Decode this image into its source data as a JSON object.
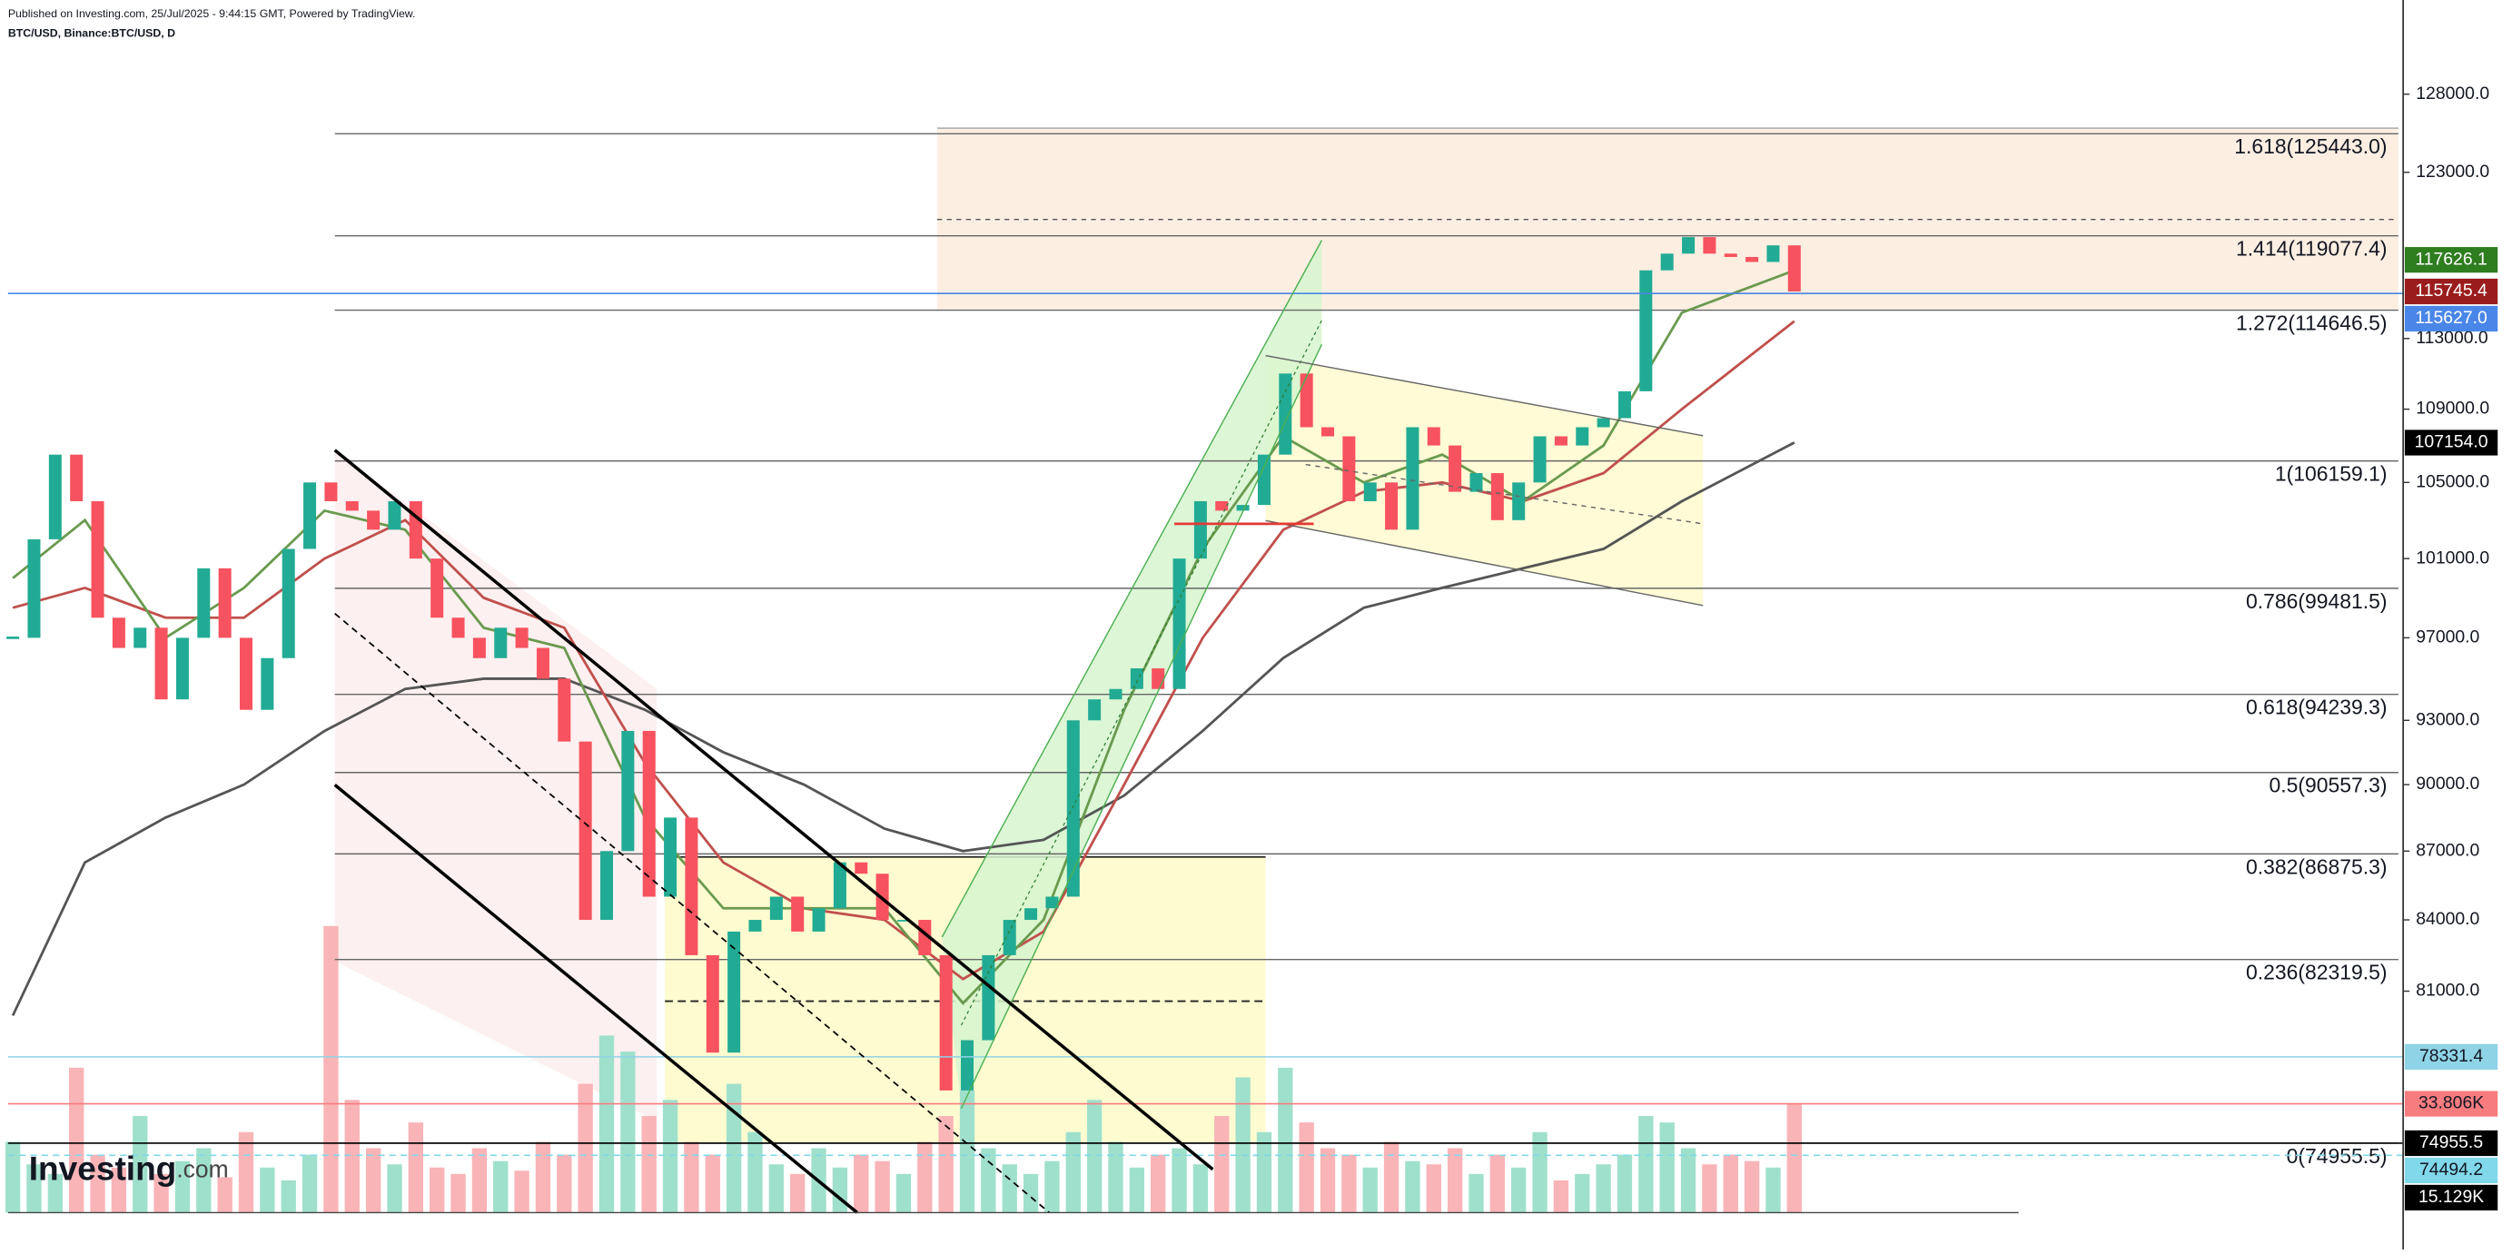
{
  "header": {
    "published": "Published on Investing.com, 25/Jul/2025 - 9:44:15 GMT, Powered by TradingView.",
    "symbol": "BTC/USD, Binance:BTC/USD, D"
  },
  "logo": {
    "name": "Investing",
    "suffix": ".com"
  },
  "chart_data": {
    "type": "candlestick",
    "log": true,
    "ylim": [
      71000,
      134300
    ],
    "yticks": [
      {
        "value": 128000,
        "label": "128000.0"
      },
      {
        "value": 123000,
        "label": "123000.0"
      },
      {
        "value": 113000,
        "label": "113000.0"
      },
      {
        "value": 109000,
        "label": "109000.0"
      },
      {
        "value": 105000,
        "label": "105000.0"
      },
      {
        "value": 101000,
        "label": "101000.0"
      },
      {
        "value": 97000,
        "label": "97000.0"
      },
      {
        "value": 93000,
        "label": "93000.0"
      },
      {
        "value": 90000,
        "label": "90000.0"
      },
      {
        "value": 87000,
        "label": "87000.0"
      },
      {
        "value": 84000,
        "label": "84000.0"
      },
      {
        "value": 81000,
        "label": "81000.0"
      }
    ],
    "candles": {
      "up_color": "#22ab94",
      "down_color": "#f7525f",
      "close": [
        97000,
        102000,
        106500,
        104000,
        98000,
        96500,
        97500,
        94000,
        97000,
        100500,
        97000,
        93500,
        96000,
        101500,
        105000,
        104000,
        103500,
        102500,
        104000,
        101000,
        98000,
        97000,
        96000,
        97500,
        96500,
        95000,
        92000,
        84000,
        87000,
        92500,
        85000,
        88500,
        82500,
        78500,
        83500,
        84000,
        85000,
        83500,
        84500,
        86500,
        86000,
        84000,
        84000,
        82500,
        77000,
        79000,
        82500,
        84000,
        84500,
        85000,
        93000,
        94000,
        94500,
        95500,
        94500,
        101000,
        104000,
        103500,
        103800,
        106500,
        111000,
        108000,
        107500,
        104000,
        105000,
        102500,
        108000,
        107000,
        104500,
        105500,
        103000,
        105000,
        107500,
        107000,
        108000,
        108500,
        110000,
        117000,
        118000,
        119000,
        118000,
        117800,
        117500,
        118500,
        115745.4
      ]
    },
    "volume": {
      "vlim": [
        0,
        100000
      ],
      "up_color": "#9fe0cc",
      "down_color": "#f9b4b7",
      "values": [
        22000,
        15000,
        12000,
        45000,
        18000,
        14000,
        30000,
        12000,
        16000,
        20000,
        11000,
        25000,
        14000,
        10000,
        18000,
        89000,
        35000,
        20000,
        15000,
        28000,
        14000,
        12000,
        20000,
        16000,
        13000,
        22000,
        18000,
        40000,
        55000,
        50000,
        30000,
        35000,
        22000,
        18000,
        40000,
        25000,
        15000,
        12000,
        20000,
        14000,
        18000,
        16000,
        12000,
        22000,
        30000,
        38000,
        20000,
        15000,
        12000,
        16000,
        25000,
        35000,
        22000,
        14000,
        18000,
        20000,
        15000,
        30000,
        42000,
        25000,
        45000,
        28000,
        20000,
        18000,
        14000,
        22000,
        16000,
        15000,
        20000,
        12000,
        18000,
        14000,
        25000,
        10000,
        12000,
        15000,
        18000,
        30000,
        28000,
        20000,
        15000,
        18000,
        16000,
        14000,
        33806
      ]
    },
    "moving_averages": [
      {
        "color": "#555555",
        "x": [
          0,
          3.4,
          7.2,
          10.9,
          14.7,
          18.5,
          22.2,
          26,
          29.8,
          33.5,
          37.3,
          41.1,
          44.8,
          48.6,
          52.4,
          56.1,
          59.9,
          63.7,
          67.4,
          71.2,
          75,
          78.7,
          84
        ],
        "values": [
          80000,
          86500,
          88500,
          90000,
          92500,
          94500,
          95000,
          95000,
          93500,
          91500,
          90000,
          88000,
          87000,
          87500,
          89500,
          92500,
          96000,
          98500,
          99500,
          100500,
          101500,
          104000,
          107154
        ]
      },
      {
        "color": "#c0504d",
        "x": [
          0,
          3.4,
          7.2,
          10.9,
          14.7,
          18.5,
          22.2,
          26,
          29.8,
          33.5,
          37.3,
          41.1,
          44.8,
          48.6,
          52.4,
          56.1,
          59.9,
          63.7,
          67.4,
          71.2,
          75,
          78.7,
          84
        ],
        "values": [
          98500,
          99500,
          98000,
          98000,
          101000,
          103000,
          99000,
          97500,
          91000,
          86500,
          84500,
          84000,
          81500,
          83500,
          90000,
          97000,
          102500,
          104500,
          105000,
          104000,
          105500,
          109000,
          114000
        ]
      },
      {
        "color": "#6a9a4f",
        "x": [
          0,
          3.4,
          7.2,
          10.9,
          14.7,
          18.5,
          22.2,
          26,
          29.8,
          33.5,
          37.3,
          41.1,
          44.8,
          48.6,
          52.4,
          56.1,
          59.9,
          63.7,
          67.4,
          71.2,
          75,
          78.7,
          84
        ],
        "values": [
          100000,
          103000,
          97000,
          99500,
          103500,
          102500,
          97500,
          96500,
          88500,
          84500,
          84500,
          84500,
          80500,
          84000,
          93500,
          101500,
          107500,
          105000,
          106500,
          104000,
          107000,
          114500,
          117000
        ]
      }
    ],
    "fib_levels": [
      {
        "value": 125443.0,
        "label": "1.618(125443.0)"
      },
      {
        "value": 119077.4,
        "label": "1.414(119077.4)"
      },
      {
        "value": 114646.5,
        "label": "1.272(114646.5)"
      },
      {
        "value": 106159.1,
        "label": "1(106159.1)"
      },
      {
        "value": 99481.5,
        "label": "0.786(99481.5)"
      },
      {
        "value": 94239.3,
        "label": "0.618(94239.3)"
      },
      {
        "value": 90557.3,
        "label": "0.5(90557.3)"
      },
      {
        "value": 86875.3,
        "label": "0.382(86875.3)"
      },
      {
        "value": 82319.5,
        "label": "0.236(82319.5)"
      },
      {
        "value": 74955.5,
        "label": "0(74955.5)"
      }
    ],
    "price_tags": [
      {
        "value": 117626.1,
        "label": "117626.1",
        "color": "#2e7d1f"
      },
      {
        "value": 115745.4,
        "label": "115745.4",
        "color": "#9b1c1c"
      },
      {
        "value": 115627.0,
        "label": "115627.0",
        "color": "#4a86e8",
        "line": "solid"
      },
      {
        "value": 107154.0,
        "label": "107154.0",
        "color": "#000000"
      },
      {
        "value": 78331.4,
        "label": "78331.4",
        "color": "#8fd3e6",
        "line": "solid"
      },
      {
        "value": 74955.5,
        "label": "74955.5",
        "color": "#000000",
        "line": "solid"
      },
      {
        "value": 74494.2,
        "label": "74494.2",
        "color": "#80d8ea",
        "line": "dashed"
      }
    ],
    "volume_tags": [
      {
        "value": 33806,
        "label": "33.806K",
        "color": "#f77c80",
        "line": "solid"
      },
      {
        "value": 15129,
        "label": "15.129K",
        "color": "#000000"
      }
    ]
  }
}
